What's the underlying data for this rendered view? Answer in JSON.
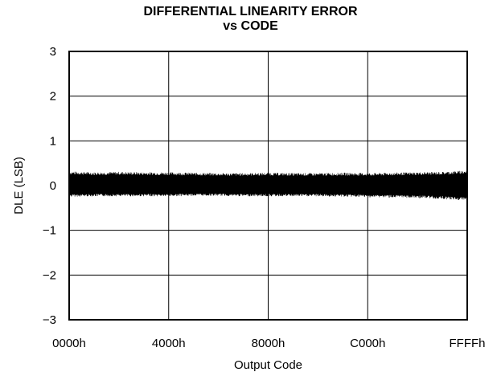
{
  "chart_data": {
    "type": "line",
    "title": [
      "DIFFERENTIAL LINEARITY ERROR",
      "vs CODE"
    ],
    "xlabel": "Output Code",
    "ylabel": "DLE (LSB)",
    "x_ticks": [
      "0000h",
      "4000h",
      "8000h",
      "C000h",
      "FFFFh"
    ],
    "x_range": [
      0,
      65535
    ],
    "y_ticks": [
      "3",
      "2",
      "1",
      "0",
      "−1",
      "−2",
      "−3"
    ],
    "ylim": [
      -3,
      3
    ],
    "grid": true,
    "series": [
      {
        "description": "DLE noise band, dense across all codes",
        "x": [
          0,
          4096,
          8192,
          12288,
          16384,
          20480,
          24576,
          28672,
          32768,
          36864,
          40960,
          45056,
          49152,
          53248,
          57344,
          61440,
          65535
        ],
        "upper": [
          0.32,
          0.3,
          0.31,
          0.3,
          0.3,
          0.29,
          0.28,
          0.28,
          0.29,
          0.28,
          0.28,
          0.29,
          0.28,
          0.29,
          0.3,
          0.31,
          0.34
        ],
        "lower": [
          -0.25,
          -0.24,
          -0.24,
          -0.24,
          -0.24,
          -0.23,
          -0.23,
          -0.24,
          -0.24,
          -0.24,
          -0.24,
          -0.25,
          -0.26,
          -0.27,
          -0.28,
          -0.3,
          -0.34
        ],
        "color": "#000000"
      }
    ]
  }
}
